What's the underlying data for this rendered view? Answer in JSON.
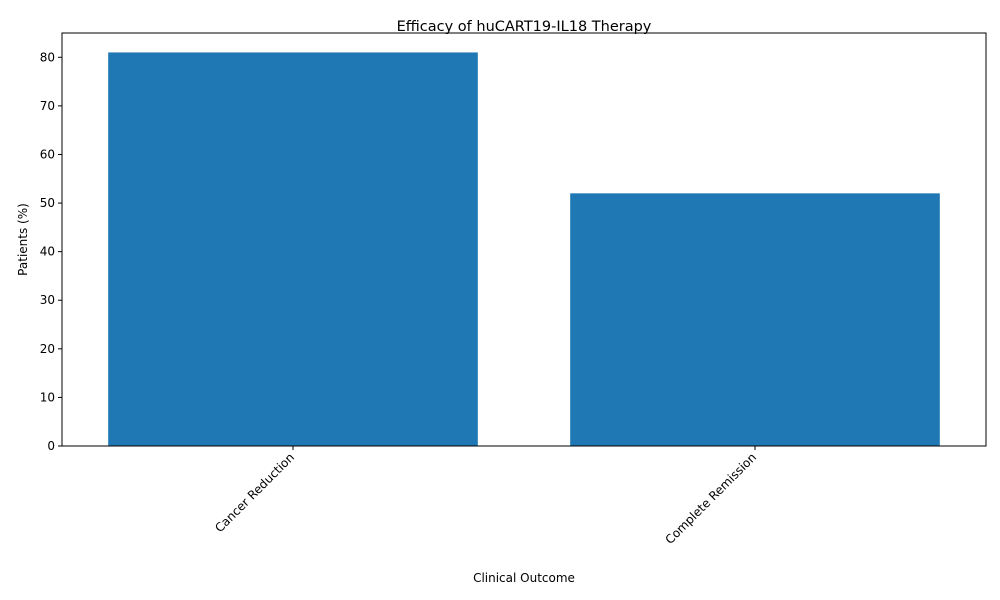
{
  "chart_data": {
    "type": "bar",
    "title": "Efficacy of huCART19-IL18 Therapy",
    "xlabel": "Clinical Outcome",
    "ylabel": "Patients (%)",
    "categories": [
      "Cancer Reduction",
      "Complete Remission"
    ],
    "values": [
      81,
      52
    ],
    "ylim": [
      0,
      85
    ],
    "yticks": [
      0,
      10,
      20,
      30,
      40,
      50,
      60,
      70,
      80
    ],
    "bar_color": "#1f77b4",
    "grid": false,
    "legend": "none"
  }
}
